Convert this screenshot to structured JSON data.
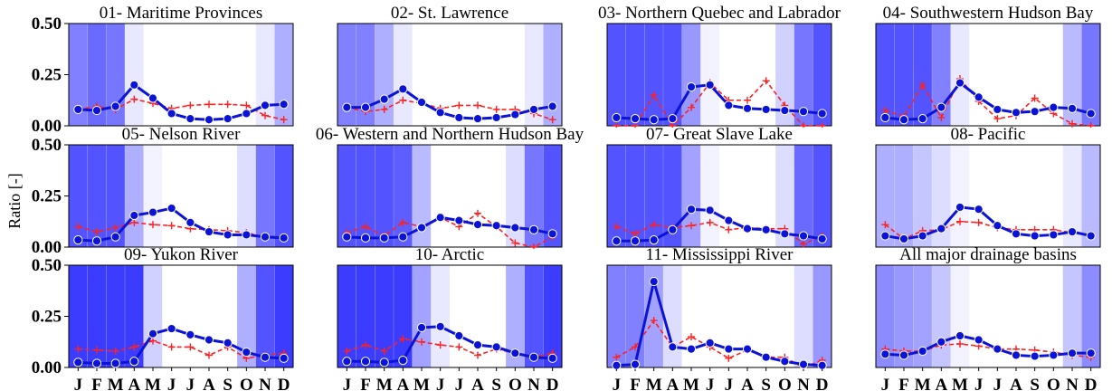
{
  "figure": {
    "ylabel": "Ratio [-]",
    "months": [
      "J",
      "F",
      "M",
      "A",
      "M",
      "J",
      "J",
      "A",
      "S",
      "O",
      "N",
      "D"
    ],
    "yticks": [
      "0.00",
      "0.25",
      "0.50"
    ]
  },
  "colors": {
    "solid_series": "#0b14d6",
    "dashed_series": "#ff2020",
    "shade_base": "#1a1aff"
  },
  "chart_data": [
    {
      "type": "line",
      "title": "01- Maritime Provinces",
      "ylim": [
        0,
        0.5
      ],
      "shade": [
        0.55,
        0.65,
        0.6,
        0.1,
        0,
        0,
        0,
        0,
        0,
        0,
        0.1,
        0.35
      ],
      "series": [
        {
          "values": [
            0.08,
            0.075,
            0.095,
            0.2,
            0.135,
            0.06,
            0.035,
            0.03,
            0.035,
            0.06,
            0.1,
            0.105
          ]
        },
        {
          "values": [
            0.08,
            0.095,
            0.08,
            0.13,
            0.11,
            0.085,
            0.1,
            0.105,
            0.105,
            0.1,
            0.05,
            0.03
          ]
        }
      ]
    },
    {
      "type": "line",
      "title": "02- St. Lawrence",
      "ylim": [
        0,
        0.5
      ],
      "shade": [
        0.55,
        0.55,
        0.35,
        0.1,
        0,
        0,
        0,
        0,
        0,
        0,
        0.1,
        0.35
      ],
      "series": [
        {
          "values": [
            0.09,
            0.09,
            0.13,
            0.18,
            0.115,
            0.065,
            0.04,
            0.035,
            0.04,
            0.055,
            0.08,
            0.095
          ]
        },
        {
          "values": [
            0.09,
            0.07,
            0.08,
            0.125,
            0.11,
            0.085,
            0.1,
            0.1,
            0.08,
            0.08,
            0.06,
            0.03
          ]
        }
      ]
    },
    {
      "type": "line",
      "title": "03- Northern Quebec and Labrador",
      "ylim": [
        0,
        0.5
      ],
      "shade": [
        0.75,
        0.75,
        0.75,
        0.75,
        0.45,
        0.05,
        0,
        0,
        0,
        0.2,
        0.6,
        0.75
      ],
      "series": [
        {
          "values": [
            0.04,
            0.035,
            0.03,
            0.035,
            0.19,
            0.2,
            0.1,
            0.085,
            0.08,
            0.075,
            0.07,
            0.06
          ]
        },
        {
          "values": [
            0,
            0,
            0.15,
            0,
            0.09,
            0.21,
            0.125,
            0.125,
            0.22,
            0.1,
            0,
            0
          ]
        }
      ]
    },
    {
      "type": "line",
      "title": "04- Southwestern Hudson Bay",
      "ylim": [
        0,
        0.5
      ],
      "shade": [
        0.75,
        0.75,
        0.75,
        0.55,
        0.1,
        0,
        0,
        0,
        0,
        0,
        0.3,
        0.6
      ],
      "series": [
        {
          "values": [
            0.04,
            0.03,
            0.035,
            0.09,
            0.21,
            0.14,
            0.08,
            0.065,
            0.07,
            0.09,
            0.085,
            0.06
          ]
        },
        {
          "values": [
            0.075,
            0.045,
            0.2,
            0.04,
            0.23,
            0.12,
            0.035,
            0.05,
            0.135,
            0.06,
            0.01,
            0
          ]
        }
      ]
    },
    {
      "type": "line",
      "title": "05- Nelson River",
      "ylim": [
        0,
        0.5
      ],
      "shade": [
        0.75,
        0.75,
        0.75,
        0.35,
        0.05,
        0,
        0,
        0,
        0,
        0.15,
        0.6,
        0.75
      ],
      "series": [
        {
          "values": [
            0.035,
            0.03,
            0.05,
            0.155,
            0.17,
            0.19,
            0.12,
            0.075,
            0.06,
            0.06,
            0.05,
            0.045
          ]
        },
        {
          "values": [
            0.1,
            0.075,
            0.095,
            0.12,
            0.11,
            0.105,
            0.09,
            0.085,
            0.08,
            0.07,
            0.05,
            0.05
          ]
        }
      ]
    },
    {
      "type": "line",
      "title": "06- Western and Northern Hudson Bay",
      "ylim": [
        0,
        0.5
      ],
      "shade": [
        0.75,
        0.75,
        0.75,
        0.7,
        0.3,
        0,
        0,
        0,
        0,
        0.15,
        0.6,
        0.75
      ],
      "series": [
        {
          "values": [
            0.05,
            0.045,
            0.045,
            0.05,
            0.095,
            0.145,
            0.13,
            0.11,
            0.105,
            0.095,
            0.085,
            0.065
          ]
        },
        {
          "values": [
            0.07,
            0.1,
            0.055,
            0.12,
            0.1,
            0.145,
            0.1,
            0.165,
            0.1,
            0.02,
            0,
            0.05
          ]
        }
      ]
    },
    {
      "type": "line",
      "title": "07- Great Slave Lake",
      "ylim": [
        0,
        0.5
      ],
      "shade": [
        0.75,
        0.75,
        0.75,
        0.75,
        0.4,
        0.05,
        0,
        0,
        0,
        0.15,
        0.65,
        0.75
      ],
      "series": [
        {
          "values": [
            0.03,
            0.03,
            0.035,
            0.085,
            0.185,
            0.18,
            0.13,
            0.09,
            0.085,
            0.065,
            0.055,
            0.04
          ]
        },
        {
          "values": [
            0.1,
            0.065,
            0.11,
            0.095,
            0.105,
            0.12,
            0.085,
            0.095,
            0.09,
            0.09,
            0.015,
            0.055
          ]
        }
      ]
    },
    {
      "type": "line",
      "title": "08- Pacific",
      "ylim": [
        0,
        0.5
      ],
      "shade": [
        0.35,
        0.35,
        0.25,
        0.15,
        0.05,
        0,
        0,
        0,
        0,
        0,
        0.1,
        0.3
      ],
      "series": [
        {
          "values": [
            0.055,
            0.04,
            0.055,
            0.09,
            0.195,
            0.185,
            0.105,
            0.065,
            0.055,
            0.06,
            0.075,
            0.055
          ]
        },
        {
          "values": [
            0.11,
            0.04,
            0.08,
            0.085,
            0.125,
            0.12,
            0.095,
            0.085,
            0.085,
            0.085,
            0.07,
            0.06
          ]
        }
      ]
    },
    {
      "type": "line",
      "title": "09- Yukon River",
      "ylim": [
        0,
        0.5
      ],
      "shade": [
        0.85,
        0.85,
        0.85,
        0.85,
        0.2,
        0,
        0,
        0,
        0,
        0.35,
        0.75,
        0.85
      ],
      "series": [
        {
          "values": [
            0.025,
            0.02,
            0.02,
            0.03,
            0.165,
            0.19,
            0.16,
            0.135,
            0.12,
            0.075,
            0.05,
            0.045
          ]
        },
        {
          "values": [
            0.09,
            0.085,
            0.08,
            0.1,
            0.13,
            0.1,
            0.1,
            0.06,
            0.1,
            0.045,
            0.06,
            0.07
          ]
        }
      ]
    },
    {
      "type": "line",
      "title": "10- Arctic",
      "ylim": [
        0,
        0.5
      ],
      "shade": [
        0.85,
        0.85,
        0.85,
        0.85,
        0.4,
        0.1,
        0,
        0,
        0,
        0.35,
        0.75,
        0.85
      ],
      "series": [
        {
          "values": [
            0.03,
            0.03,
            0.025,
            0.035,
            0.195,
            0.2,
            0.155,
            0.11,
            0.1,
            0.07,
            0.05,
            0.045
          ]
        },
        {
          "values": [
            0.08,
            0.11,
            0.08,
            0.14,
            0.125,
            0.11,
            0.1,
            0.06,
            0.09,
            0.07,
            0.05,
            0.07
          ]
        }
      ]
    },
    {
      "type": "line",
      "title": "11- Mississippi River",
      "ylim": [
        0,
        0.5
      ],
      "shade": [
        0.55,
        0.55,
        0.4,
        0.15,
        0,
        0,
        0,
        0,
        0,
        0,
        0.15,
        0.45
      ],
      "series": [
        {
          "values": [
            0.01,
            0.015,
            0.42,
            0.1,
            0.09,
            0.12,
            0.09,
            0.09,
            0.05,
            0.03,
            0.015,
            0.01
          ]
        },
        {
          "values": [
            0.05,
            0.1,
            0.23,
            0.1,
            0.15,
            0.1,
            0.045,
            0.085,
            0.05,
            0.05,
            0,
            0.035
          ]
        }
      ]
    },
    {
      "type": "line",
      "title": "All major drainage basins",
      "ylim": [
        0,
        0.5
      ],
      "shade": [
        0.5,
        0.45,
        0.4,
        0.25,
        0.05,
        0,
        0,
        0,
        0,
        0,
        0.25,
        0.5
      ],
      "series": [
        {
          "values": [
            0.065,
            0.06,
            0.08,
            0.125,
            0.155,
            0.135,
            0.09,
            0.06,
            0.055,
            0.06,
            0.07,
            0.07
          ]
        },
        {
          "values": [
            0.09,
            0.08,
            0.08,
            0.11,
            0.115,
            0.105,
            0.09,
            0.09,
            0.085,
            0.075,
            0.06,
            0.05
          ]
        }
      ]
    }
  ]
}
